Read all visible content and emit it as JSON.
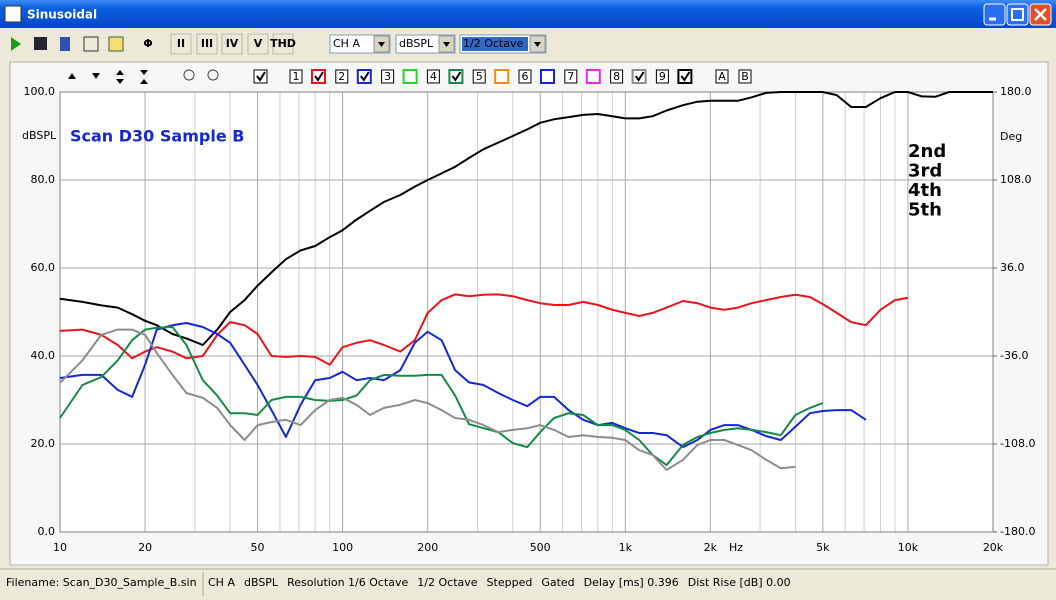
{
  "window": {
    "title": "Sinusoidal"
  },
  "toolbar": {
    "buttons": [
      "II",
      "III",
      "IV",
      "V",
      "THD"
    ],
    "dropdowns": [
      "CH A",
      "dBSPL",
      "1/2 Octave"
    ]
  },
  "chart_toolbar": {
    "channels": [
      "1",
      "2",
      "3",
      "4",
      "5",
      "6",
      "7",
      "8",
      "9"
    ],
    "overlays": [
      "A",
      "B"
    ]
  },
  "chart_data": {
    "type": "line",
    "annotation": "Scan D30 Sample B",
    "y_label": "dBSPL",
    "y2_label": "Deg",
    "x_label": "Hz",
    "xlog": true,
    "xlim": [
      10,
      20000
    ],
    "xticks": [
      10,
      20,
      50,
      100,
      200,
      500,
      {
        "value": 1000,
        "label": "1k"
      },
      {
        "value": 2000,
        "label": "2k"
      },
      {
        "value": 5000,
        "label": "5k"
      },
      {
        "value": 10000,
        "label": "10k"
      },
      {
        "value": 20000,
        "label": "20k"
      }
    ],
    "xminor": [
      30,
      40,
      60,
      70,
      80,
      90,
      300,
      400,
      600,
      700,
      800,
      900,
      3000,
      4000,
      6000,
      7000,
      8000,
      9000
    ],
    "ylim": [
      0,
      100
    ],
    "yticks": [
      {
        "value": 0,
        "label": "0.0"
      },
      {
        "value": 20,
        "label": "20.0"
      },
      {
        "value": 40,
        "label": "40.0"
      },
      {
        "value": 60,
        "label": "60.0"
      },
      {
        "value": 80,
        "label": "80.0"
      },
      {
        "value": 100,
        "label": "100.0"
      }
    ],
    "y2lim": [
      -180,
      180
    ],
    "y2ticks": [
      {
        "value": -180,
        "label": "-180.0"
      },
      {
        "value": -108,
        "label": "-108.0"
      },
      {
        "value": -36,
        "label": "-36.0"
      },
      {
        "value": 36,
        "label": "36.0"
      },
      {
        "value": 108,
        "label": "108.0"
      },
      {
        "value": 180,
        "label": "180.0"
      }
    ],
    "grid": true,
    "x": [
      10,
      12,
      14,
      16,
      18,
      20,
      22,
      25,
      28,
      32,
      36,
      40,
      45,
      50,
      56,
      63,
      71,
      80,
      90,
      100,
      112,
      125,
      140,
      160,
      180,
      200,
      224,
      250,
      280,
      315,
      355,
      400,
      450,
      500,
      560,
      630,
      710,
      800,
      900,
      1000,
      1120,
      1250,
      1400,
      1600,
      1800,
      2000,
      2240,
      2500,
      2800,
      3150,
      3550,
      4000,
      4500,
      5000,
      5600,
      6300,
      7100,
      8000,
      9000,
      10000,
      11200,
      12500,
      14000,
      16000,
      18000,
      20000
    ],
    "series": [
      {
        "color": "#000000",
        "values": [
          53,
          52.3,
          51.5,
          51,
          49.5,
          48,
          47,
          45,
          44,
          42.5,
          46,
          50,
          52.7,
          56,
          59,
          62,
          64,
          65,
          67,
          68.6,
          71,
          73,
          75,
          76.6,
          78.5,
          80,
          81.5,
          83,
          85,
          87,
          88.5,
          90,
          91.5,
          93,
          93.8,
          94.3,
          94.8,
          95,
          94.5,
          94,
          94,
          94.5,
          95.8,
          97,
          97.8,
          98,
          98,
          98,
          98.8,
          99.8,
          100,
          100,
          100,
          100,
          99.3,
          96.6,
          96.6,
          98.6,
          100,
          100,
          99,
          98.9,
          100,
          100,
          100,
          100
        ]
      },
      {
        "name": "2nd",
        "color": "#e8141c",
        "values": [
          45.7,
          46,
          44.8,
          42.5,
          39.5,
          41,
          42,
          41,
          39.5,
          40,
          44.8,
          47.7,
          47,
          45,
          40,
          39.8,
          40,
          39.8,
          38,
          42,
          43,
          43.6,
          42.5,
          41,
          43.6,
          49.8,
          52.7,
          54,
          53.6,
          53.9,
          54,
          53.6,
          52.7,
          52,
          51.6,
          51.6,
          52.3,
          51.6,
          50.5,
          49.8,
          49.1,
          49.8,
          51,
          52.5,
          52,
          51,
          50.5,
          51,
          52,
          52.7,
          53.4,
          53.9,
          53.4,
          51.8,
          49.8,
          47.7,
          47,
          50.5,
          52.7,
          53.2,
          null,
          null,
          null,
          null,
          null,
          null
        ]
      },
      {
        "name": "3rd",
        "color": "#1428d2",
        "values": [
          35,
          35.7,
          35.7,
          32.3,
          30.7,
          38,
          46,
          47,
          47.5,
          46.6,
          45,
          43,
          38,
          33.4,
          27.7,
          21.6,
          28.9,
          34.5,
          35,
          36.4,
          34.5,
          35,
          34.5,
          36.8,
          43,
          45.5,
          43.6,
          36.8,
          34,
          33.4,
          31.6,
          30,
          28.6,
          30.7,
          30.7,
          27.7,
          25.5,
          24.3,
          24.8,
          23.6,
          22.5,
          22.5,
          22,
          19.3,
          20.9,
          23.2,
          24.3,
          24.3,
          23.2,
          21.8,
          20.9,
          23.9,
          27,
          27.5,
          27.7,
          27.7,
          25.5,
          null,
          null,
          null,
          null,
          null,
          null,
          null,
          null,
          null
        ]
      },
      {
        "name": "4th",
        "color": "#148a46",
        "values": [
          25.9,
          33.4,
          35.2,
          39,
          43.6,
          46,
          46.4,
          46.6,
          42.5,
          34.5,
          31,
          27,
          27,
          26.6,
          30,
          30.7,
          30.7,
          30,
          29.8,
          30,
          31,
          34.5,
          35.7,
          35.5,
          35.5,
          35.7,
          35.7,
          31,
          24.5,
          23.6,
          22.7,
          20.2,
          19.3,
          22.7,
          25.9,
          27,
          26.6,
          24.3,
          24.3,
          23.2,
          20.9,
          17.5,
          15.2,
          19.8,
          21.6,
          22.5,
          23.2,
          23.6,
          23.2,
          22.7,
          22,
          26.6,
          28.2,
          29.3,
          null,
          null,
          null,
          null,
          null,
          null,
          null,
          null,
          null,
          null,
          null,
          null
        ]
      },
      {
        "name": "5th",
        "color": "#8c8c8c",
        "values": [
          33.9,
          39,
          44.8,
          46,
          46,
          44.8,
          40.7,
          35.7,
          31.6,
          30.5,
          28.2,
          24.3,
          20.9,
          24.3,
          25,
          25.5,
          24.3,
          27.7,
          30,
          30.5,
          28.9,
          26.6,
          28.2,
          28.9,
          30,
          29.3,
          27.7,
          25.9,
          25.5,
          24.3,
          22.7,
          23.2,
          23.6,
          24.3,
          23.2,
          21.6,
          22,
          21.6,
          21.4,
          20.9,
          18.6,
          17.5,
          14.1,
          16.4,
          19.8,
          20.9,
          20.9,
          19.8,
          18.6,
          16.4,
          14.5,
          14.8,
          null,
          null,
          null,
          null,
          null,
          null,
          null,
          null,
          null,
          null,
          null,
          null,
          null,
          null
        ]
      }
    ]
  },
  "status_bar": {
    "filename": "Filename: Scan_D30_Sample_B.sin",
    "fields": [
      "CH A",
      "dBSPL",
      "Resolution 1/6 Octave",
      "1/2 Octave",
      "Stepped",
      "Gated",
      "Delay [ms] 0.396",
      "Dist Rise [dB] 0.00"
    ]
  }
}
